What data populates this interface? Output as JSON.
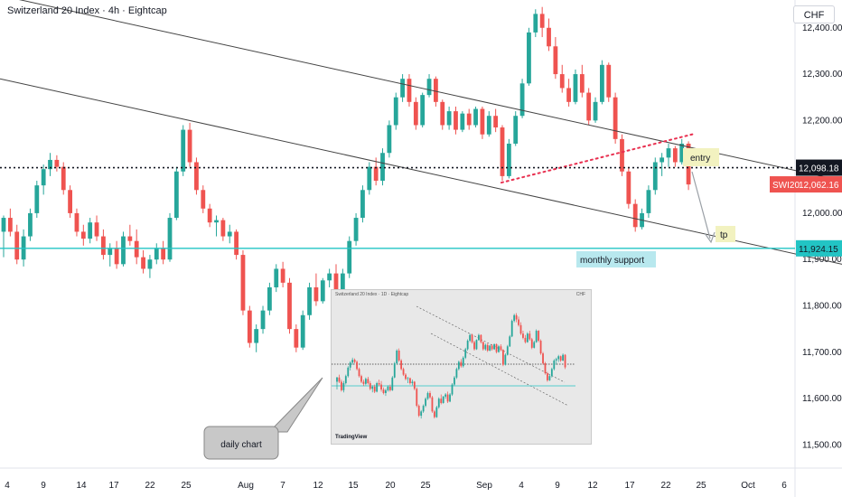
{
  "title": "Switzerland 20 Index · 4h · Eightcap",
  "currency_label": "CHF",
  "symbol_tag": "SWI20",
  "colors": {
    "up": "#26a69a",
    "down": "#ef5350",
    "support": "#22c4c4",
    "entry_bg": "#f2f2c0",
    "support_bg": "#b8e8ee",
    "daily_bg": "#c8c8c8",
    "trend": "#444444",
    "red_dots": "#e83050"
  },
  "annotations": {
    "entry": "entry",
    "tp": "tp",
    "monthly_support": "monthly support",
    "daily_chart": "daily chart"
  },
  "inset": {
    "header": "Switzerland 20 Index · 1D · Eightcap",
    "footer": "TradingView",
    "currency": "CHF"
  },
  "chart_data": {
    "type": "candlestick",
    "title": "Switzerland 20 Index · 4h · Eightcap",
    "yaxis_ticks": [
      "12,400.00",
      "12,300.00",
      "12,200.00",
      "12,100.00",
      "12,000.00",
      "11,900.00",
      "11,800.00",
      "11,700.00",
      "11,600.00",
      "11,500.00"
    ],
    "xaxis_ticks": [
      "4",
      "9",
      "14",
      "17",
      "22",
      "25",
      "Aug",
      "7",
      "12",
      "15",
      "20",
      "25",
      "Sep",
      "4",
      "9",
      "12",
      "17",
      "22",
      "25",
      "Oct",
      "6"
    ],
    "price_labels": {
      "entry_level": "12,098.18",
      "last_price": "12,062.16",
      "support_level": "11,924.15"
    },
    "ylim": [
      11450,
      12460
    ],
    "candles": [
      [
        11960,
        11995,
        11905,
        11990
      ],
      [
        11990,
        12010,
        11950,
        11960
      ],
      [
        11960,
        11975,
        11890,
        11900
      ],
      [
        11900,
        11965,
        11885,
        11950
      ],
      [
        11950,
        12010,
        11940,
        12000
      ],
      [
        12000,
        12070,
        11990,
        12060
      ],
      [
        12060,
        12105,
        12040,
        12095
      ],
      [
        12095,
        12130,
        12080,
        12115
      ],
      [
        12115,
        12125,
        12090,
        12100
      ],
      [
        12100,
        12110,
        12040,
        12050
      ],
      [
        12050,
        12060,
        11990,
        12000
      ],
      [
        12000,
        12010,
        11950,
        11960
      ],
      [
        11960,
        11975,
        11930,
        11945
      ],
      [
        11945,
        11990,
        11935,
        11980
      ],
      [
        11980,
        11995,
        11940,
        11950
      ],
      [
        11950,
        11965,
        11900,
        11910
      ],
      [
        11910,
        11935,
        11885,
        11925
      ],
      [
        11925,
        11940,
        11880,
        11890
      ],
      [
        11890,
        11960,
        11885,
        11950
      ],
      [
        11950,
        11975,
        11930,
        11940
      ],
      [
        11940,
        11965,
        11890,
        11905
      ],
      [
        11905,
        11920,
        11870,
        11880
      ],
      [
        11880,
        11910,
        11860,
        11900
      ],
      [
        11900,
        11935,
        11890,
        11925
      ],
      [
        11925,
        11940,
        11890,
        11900
      ],
      [
        11900,
        12000,
        11895,
        11990
      ],
      [
        11990,
        12100,
        11985,
        12090
      ],
      [
        12090,
        12190,
        12080,
        12180
      ],
      [
        12180,
        12195,
        12100,
        12110
      ],
      [
        12110,
        12120,
        12040,
        12050
      ],
      [
        12050,
        12060,
        12000,
        12010
      ],
      [
        12010,
        12020,
        11970,
        11980
      ],
      [
        11980,
        11995,
        11950,
        11985
      ],
      [
        11985,
        11990,
        11940,
        11950
      ],
      [
        11950,
        11975,
        11935,
        11960
      ],
      [
        11960,
        11965,
        11900,
        11910
      ],
      [
        11910,
        11920,
        11780,
        11790
      ],
      [
        11790,
        11800,
        11710,
        11720
      ],
      [
        11720,
        11760,
        11700,
        11750
      ],
      [
        11750,
        11800,
        11740,
        11790
      ],
      [
        11790,
        11850,
        11780,
        11840
      ],
      [
        11840,
        11890,
        11830,
        11880
      ],
      [
        11880,
        11895,
        11840,
        11850
      ],
      [
        11850,
        11860,
        11740,
        11750
      ],
      [
        11750,
        11760,
        11700,
        11710
      ],
      [
        11710,
        11790,
        11705,
        11780
      ],
      [
        11780,
        11850,
        11770,
        11840
      ],
      [
        11840,
        11870,
        11800,
        11810
      ],
      [
        11810,
        11860,
        11805,
        11855
      ],
      [
        11855,
        11880,
        11840,
        11870
      ],
      [
        11870,
        11890,
        11810,
        11820
      ],
      [
        11820,
        11880,
        11815,
        11870
      ],
      [
        11870,
        11950,
        11860,
        11940
      ],
      [
        11940,
        12000,
        11930,
        11990
      ],
      [
        11990,
        12060,
        11980,
        12050
      ],
      [
        12050,
        12110,
        12040,
        12100
      ],
      [
        12100,
        12120,
        12060,
        12070
      ],
      [
        12070,
        12140,
        12060,
        12130
      ],
      [
        12130,
        12200,
        12120,
        12190
      ],
      [
        12190,
        12260,
        12180,
        12250
      ],
      [
        12250,
        12300,
        12240,
        12290
      ],
      [
        12290,
        12300,
        12230,
        12240
      ],
      [
        12240,
        12250,
        12180,
        12190
      ],
      [
        12190,
        12260,
        12185,
        12255
      ],
      [
        12255,
        12300,
        12250,
        12290
      ],
      [
        12290,
        12295,
        12230,
        12240
      ],
      [
        12240,
        12245,
        12180,
        12190
      ],
      [
        12190,
        12230,
        12180,
        12220
      ],
      [
        12220,
        12230,
        12170,
        12180
      ],
      [
        12180,
        12220,
        12175,
        12215
      ],
      [
        12215,
        12225,
        12180,
        12190
      ],
      [
        12190,
        12230,
        12185,
        12225
      ],
      [
        12225,
        12230,
        12160,
        12170
      ],
      [
        12170,
        12220,
        12165,
        12210
      ],
      [
        12210,
        12225,
        12175,
        12185
      ],
      [
        12185,
        12190,
        12070,
        12080
      ],
      [
        12080,
        12160,
        12075,
        12150
      ],
      [
        12150,
        12220,
        12145,
        12210
      ],
      [
        12210,
        12290,
        12205,
        12280
      ],
      [
        12280,
        12400,
        12275,
        12390
      ],
      [
        12390,
        12440,
        12380,
        12430
      ],
      [
        12430,
        12445,
        12380,
        12400
      ],
      [
        12400,
        12420,
        12350,
        12360
      ],
      [
        12360,
        12380,
        12290,
        12300
      ],
      [
        12300,
        12320,
        12260,
        12270
      ],
      [
        12270,
        12290,
        12230,
        12240
      ],
      [
        12240,
        12310,
        12235,
        12300
      ],
      [
        12300,
        12320,
        12250,
        12260
      ],
      [
        12260,
        12270,
        12190,
        12200
      ],
      [
        12200,
        12250,
        12195,
        12240
      ],
      [
        12240,
        12330,
        12235,
        12320
      ],
      [
        12320,
        12325,
        12240,
        12250
      ],
      [
        12250,
        12260,
        12150,
        12160
      ],
      [
        12160,
        12170,
        12080,
        12090
      ],
      [
        12090,
        12100,
        12010,
        12020
      ],
      [
        12020,
        12030,
        11960,
        11970
      ],
      [
        11970,
        12010,
        11965,
        12000
      ],
      [
        12000,
        12060,
        11990,
        12050
      ],
      [
        12050,
        12120,
        12040,
        12110
      ],
      [
        12110,
        12130,
        12080,
        12120
      ],
      [
        12120,
        12150,
        12100,
        12140
      ],
      [
        12140,
        12145,
        12100,
        12110
      ],
      [
        12110,
        12160,
        12105,
        12150
      ],
      [
        12150,
        12155,
        12050,
        12062
      ]
    ],
    "trendlines": [
      {
        "name": "upper channel",
        "from": [
          0,
          12470
        ],
        "to": [
          932,
          12070
        ]
      },
      {
        "name": "lower channel",
        "from": [
          0,
          12290
        ],
        "to": [
          932,
          11890
        ]
      },
      {
        "name": "rising dotted",
        "from": [
          555,
          12066
        ],
        "to": [
          770,
          12172
        ]
      }
    ]
  }
}
